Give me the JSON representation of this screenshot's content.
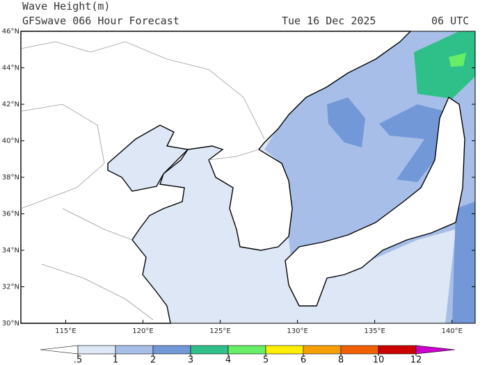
{
  "header": {
    "title": "Wave Height(m)",
    "subtitle": "GFSwave 066 Hour Forecast",
    "date": "Tue 16 Dec 2025",
    "time": "06 UTC"
  },
  "map": {
    "xlim": [
      112.1,
      141.5
    ],
    "ylim": [
      30,
      46
    ],
    "xticks": [
      {
        "value": 115,
        "label": "115°E"
      },
      {
        "value": 120,
        "label": "120°E"
      },
      {
        "value": 125,
        "label": "125°E"
      },
      {
        "value": 130,
        "label": "130°E"
      },
      {
        "value": 135,
        "label": "135°E"
      },
      {
        "value": 140,
        "label": "140°E"
      }
    ],
    "yticks": [
      {
        "value": 30,
        "label": "30°N"
      },
      {
        "value": 32,
        "label": "32°N"
      },
      {
        "value": 34,
        "label": "34°N"
      },
      {
        "value": 36,
        "label": "36°N"
      },
      {
        "value": 38,
        "label": "38°N"
      },
      {
        "value": 40,
        "label": "40°N"
      },
      {
        "value": 42,
        "label": "42°N"
      },
      {
        "value": 44,
        "label": "44°N"
      },
      {
        "value": 46,
        "label": "46°N"
      }
    ]
  },
  "colorbar": {
    "levels": [
      {
        "value": 0.5,
        "label": ".5"
      },
      1,
      2,
      3,
      4,
      5,
      6,
      8,
      10,
      12
    ],
    "colors": [
      "#ffffff",
      "#dde7f5",
      "#a7bfe8",
      "#7298d8",
      "#2fc08a",
      "#66ee66",
      "#ffee00",
      "#f5a000",
      "#f06000",
      "#cc0000",
      "#cc00cc"
    ]
  }
}
